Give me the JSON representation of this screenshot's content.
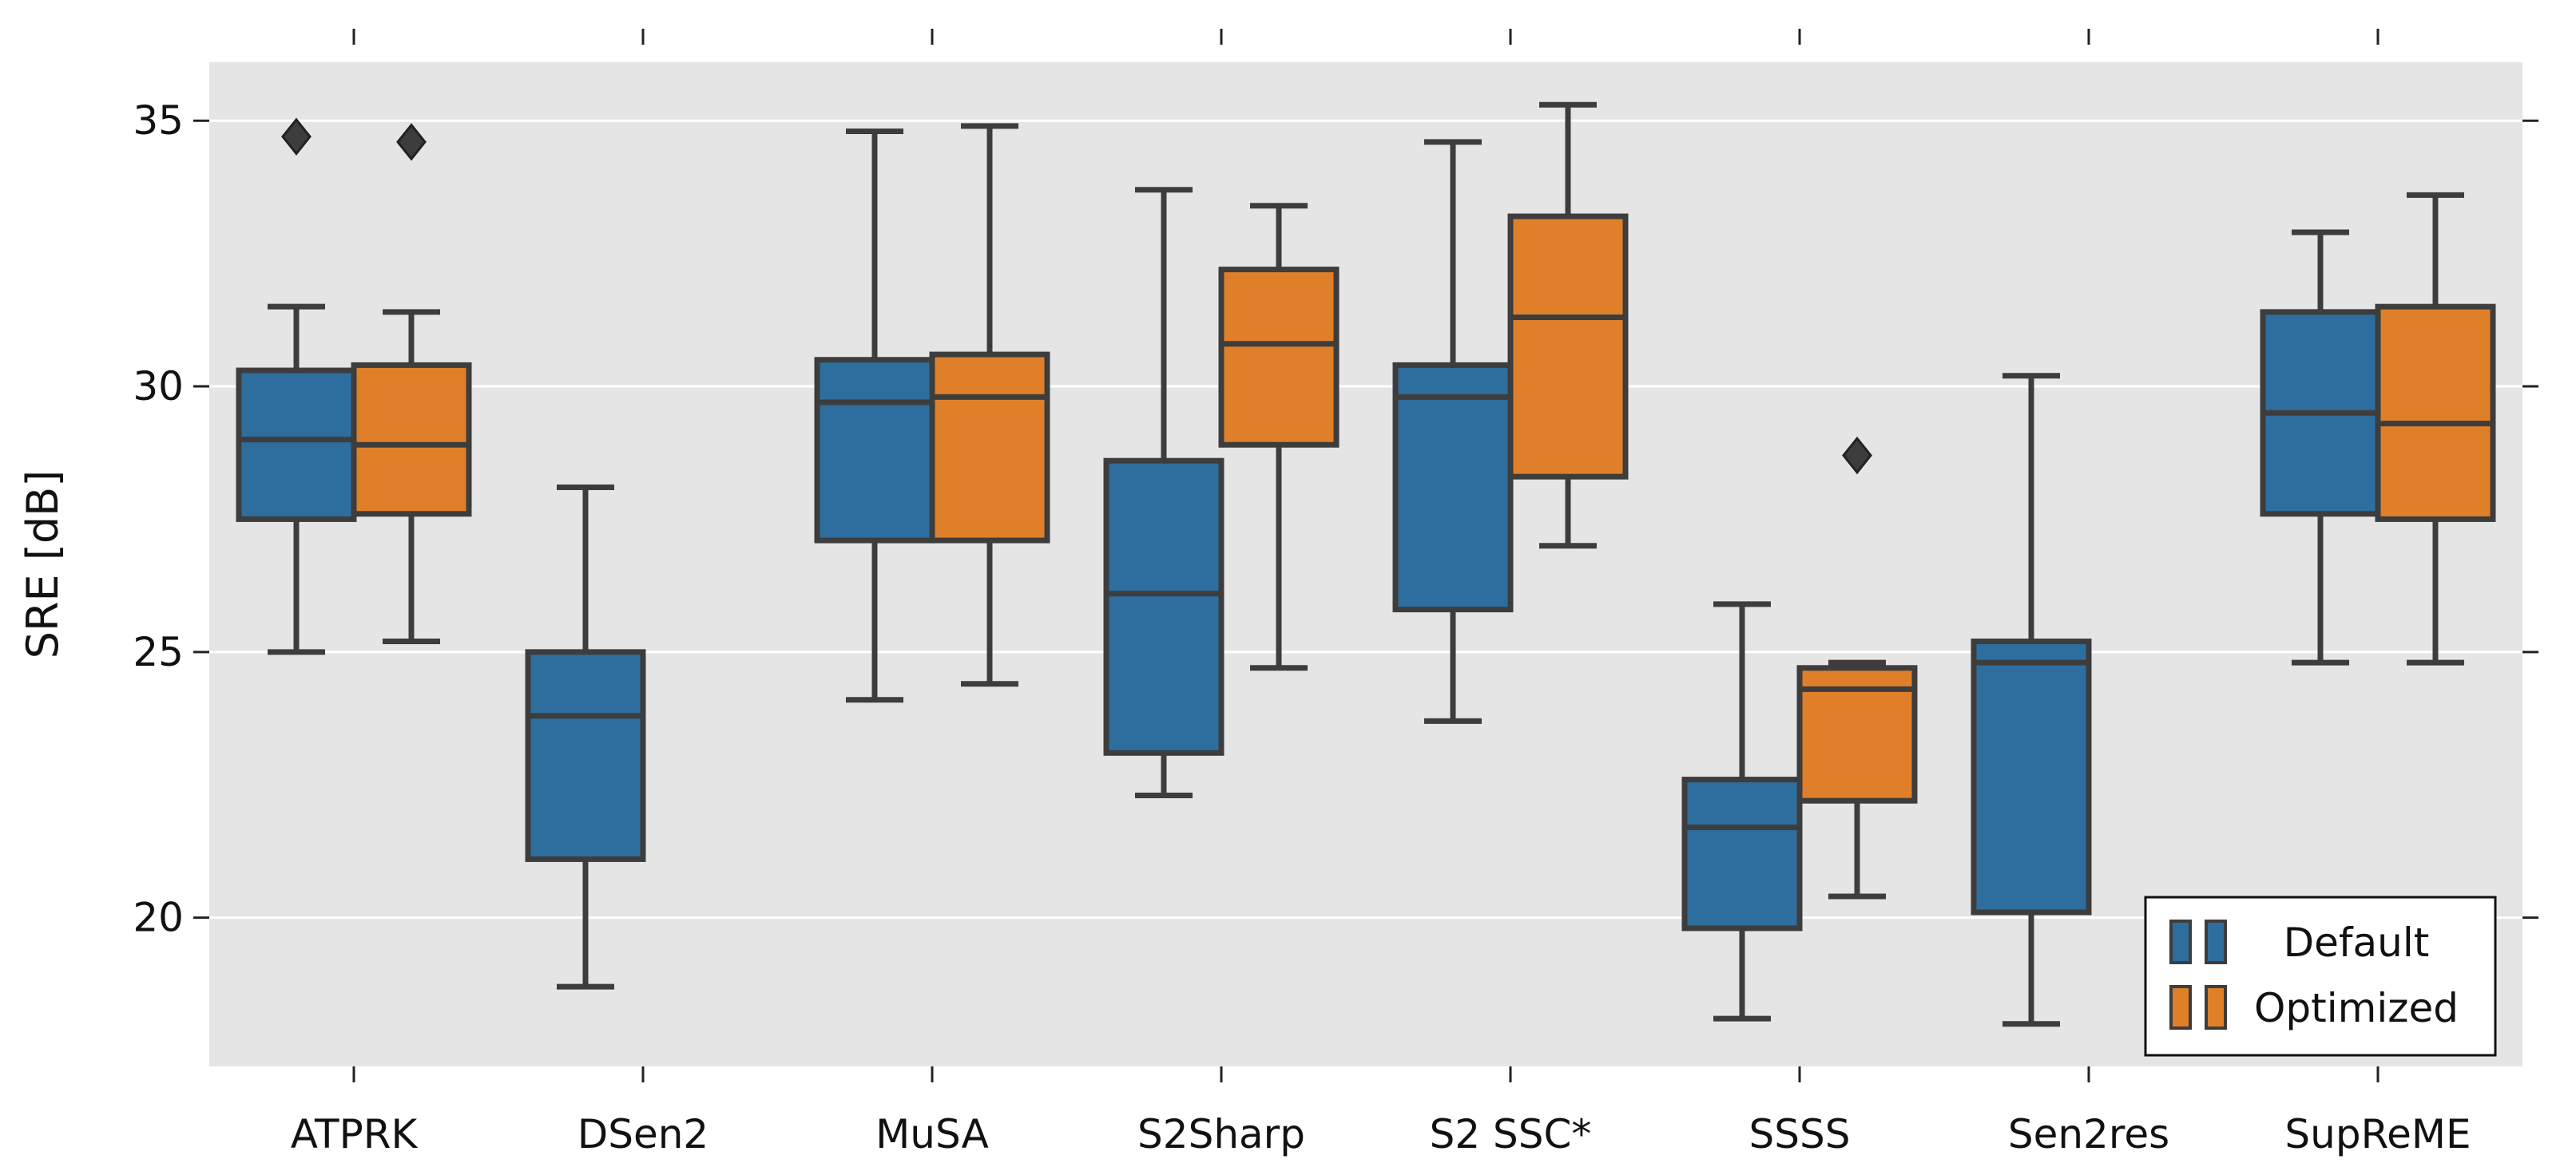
{
  "chart_data": {
    "type": "box",
    "title": "",
    "xlabel": "",
    "ylabel": "SRE [dB]",
    "ylim": [
      17.2,
      36.1
    ],
    "yticks": [
      20,
      25,
      30,
      35
    ],
    "grid": true,
    "legend_position": "bottom-right",
    "categories": [
      "ATPRK",
      "DSen2",
      "MuSA",
      "S2Sharp",
      "S2 SSC*",
      "SSSS",
      "Sen2res",
      "SupReME"
    ],
    "series": [
      {
        "name": "Default",
        "color": "#2e6e9e",
        "boxes": [
          {
            "category": "ATPRK",
            "whisker_low": 25.0,
            "q1": 27.5,
            "median": 29.0,
            "q3": 30.3,
            "whisker_high": 31.5,
            "outliers": [
              34.7
            ]
          },
          {
            "category": "DSen2",
            "whisker_low": 18.7,
            "q1": 21.1,
            "median": 23.8,
            "q3": 25.0,
            "whisker_high": 28.1,
            "outliers": []
          },
          {
            "category": "MuSA",
            "whisker_low": 24.1,
            "q1": 27.1,
            "median": 29.7,
            "q3": 30.5,
            "whisker_high": 34.8,
            "outliers": []
          },
          {
            "category": "S2Sharp",
            "whisker_low": 22.3,
            "q1": 23.1,
            "median": 26.1,
            "q3": 28.6,
            "whisker_high": 33.7,
            "outliers": []
          },
          {
            "category": "S2 SSC*",
            "whisker_low": 23.7,
            "q1": 25.8,
            "median": 29.8,
            "q3": 30.4,
            "whisker_high": 34.6,
            "outliers": []
          },
          {
            "category": "SSSS",
            "whisker_low": 18.1,
            "q1": 19.8,
            "median": 21.7,
            "q3": 22.6,
            "whisker_high": 25.9,
            "outliers": []
          },
          {
            "category": "Sen2res",
            "whisker_low": 18.0,
            "q1": 20.1,
            "median": 24.8,
            "q3": 25.2,
            "whisker_high": 30.2,
            "outliers": []
          },
          {
            "category": "SupReME",
            "whisker_low": 24.8,
            "q1": 27.6,
            "median": 29.5,
            "q3": 31.4,
            "whisker_high": 32.9,
            "outliers": []
          }
        ]
      },
      {
        "name": "Optimized",
        "color": "#e07f2a",
        "boxes": [
          {
            "category": "ATPRK",
            "whisker_low": 25.2,
            "q1": 27.6,
            "median": 28.9,
            "q3": 30.4,
            "whisker_high": 31.4,
            "outliers": [
              34.6
            ]
          },
          {
            "category": "MuSA",
            "whisker_low": 24.4,
            "q1": 27.1,
            "median": 29.8,
            "q3": 30.6,
            "whisker_high": 34.9,
            "outliers": []
          },
          {
            "category": "S2Sharp",
            "whisker_low": 24.7,
            "q1": 28.9,
            "median": 30.8,
            "q3": 32.2,
            "whisker_high": 33.4,
            "outliers": []
          },
          {
            "category": "S2 SSC*",
            "whisker_low": 27.0,
            "q1": 28.3,
            "median": 31.3,
            "q3": 33.2,
            "whisker_high": 35.3,
            "outliers": []
          },
          {
            "category": "SSSS",
            "whisker_low": 20.4,
            "q1": 22.2,
            "median": 24.3,
            "q3": 24.7,
            "whisker_high": 24.8,
            "outliers": [
              28.7
            ]
          },
          {
            "category": "SupReME",
            "whisker_low": 24.8,
            "q1": 27.5,
            "median": 29.3,
            "q3": 31.5,
            "whisker_high": 33.6,
            "outliers": []
          }
        ]
      }
    ]
  },
  "legend": {
    "entries": [
      {
        "label": "Default",
        "color": "#2e6e9e"
      },
      {
        "label": "Optimized",
        "color": "#e07f2a"
      }
    ]
  },
  "colors": {
    "plot_background": "#e5e5e5",
    "grid": "#ffffff",
    "box_edge": "#3d3d3d",
    "outlier": "#3d3d3d"
  }
}
